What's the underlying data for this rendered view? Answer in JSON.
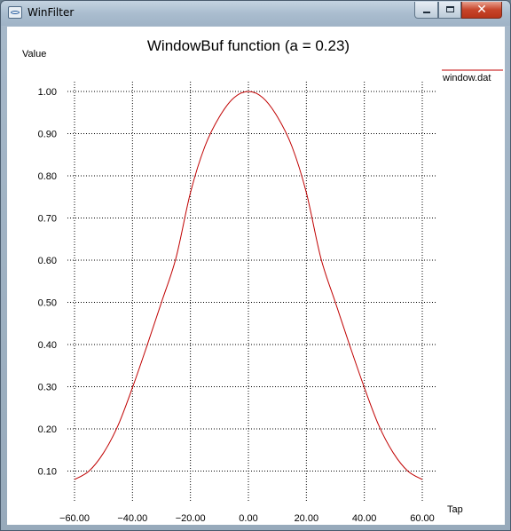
{
  "window": {
    "title": "WinFilter",
    "close_glyph": "✕"
  },
  "chart_data": {
    "type": "line",
    "title": "WindowBuf function (a = 0.23)",
    "xlabel": "Tap",
    "ylabel": "Value",
    "xlim": [
      -60,
      60
    ],
    "ylim": [
      0.08,
      1.0
    ],
    "x_ticks": [
      -60,
      -40,
      -20,
      0,
      20,
      40,
      60
    ],
    "x_tick_labels": [
      "−60.00",
      "−40.00",
      "−20.00",
      "0.00",
      "20.00",
      "40.00",
      "60.00"
    ],
    "y_ticks": [
      1.0,
      0.9,
      0.8,
      0.7,
      0.6,
      0.5,
      0.4,
      0.3,
      0.2,
      0.1
    ],
    "y_tick_labels": [
      "1.00",
      "0.90",
      "0.80",
      "0.70",
      "0.60",
      "0.50",
      "0.40",
      "0.30",
      "0.20",
      "0.10"
    ],
    "grid": true,
    "legend": "top-right",
    "series": [
      {
        "name": "window.dat",
        "color": "#c00000",
        "x": [
          -60,
          -55,
          -50,
          -45,
          -40,
          -35,
          -30,
          -25,
          -20,
          -15,
          -10,
          -5,
          0,
          5,
          10,
          15,
          20,
          25,
          30,
          35,
          40,
          45,
          50,
          55,
          60
        ],
        "y": [
          0.08,
          0.1,
          0.143,
          0.208,
          0.298,
          0.397,
          0.5,
          0.605,
          0.76,
          0.87,
          0.94,
          0.985,
          1.0,
          0.985,
          0.94,
          0.87,
          0.76,
          0.605,
          0.5,
          0.397,
          0.298,
          0.208,
          0.143,
          0.1,
          0.08
        ]
      }
    ]
  }
}
